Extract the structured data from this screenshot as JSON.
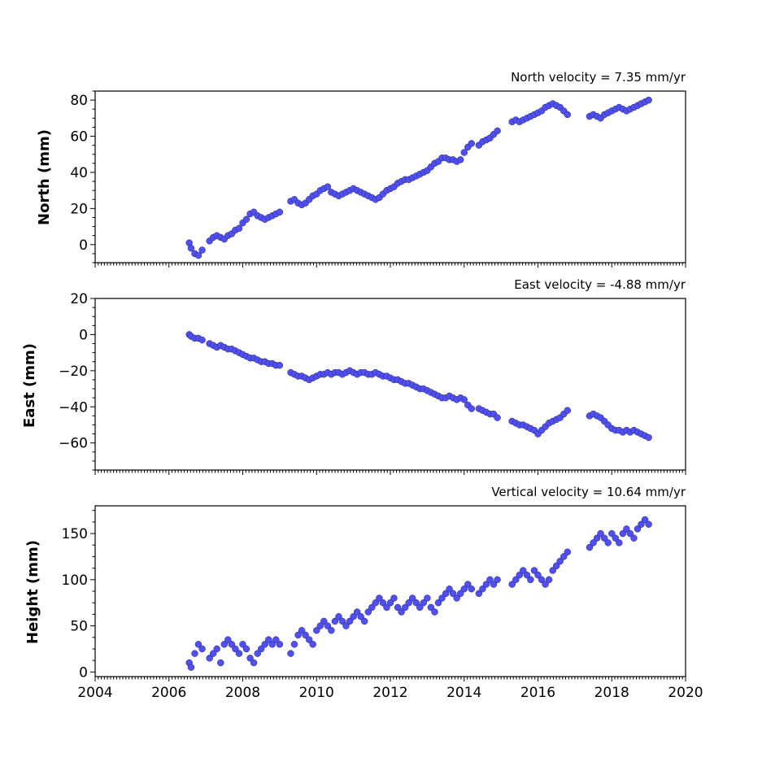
{
  "chart_data": [
    {
      "type": "scatter",
      "title": "North velocity = 7.35 mm/yr",
      "ylabel": "North (mm)",
      "xlim": [
        2004,
        2020
      ],
      "ylim": [
        -10,
        85
      ],
      "yticks": [
        0,
        20,
        40,
        60,
        80
      ],
      "x_tick_labels_shown": false,
      "color": "#4f4ff5",
      "series": [
        {
          "x": [
            2006.55,
            2006.6,
            2006.7,
            2006.8,
            2006.9,
            2007.1,
            2007.2,
            2007.3,
            2007.4,
            2007.5,
            2007.6,
            2007.7,
            2007.8,
            2007.9,
            2008.0,
            2008.1,
            2008.2,
            2008.3,
            2008.4,
            2008.5,
            2008.6,
            2008.7,
            2008.8,
            2008.9,
            2009.0,
            2009.3,
            2009.4,
            2009.5,
            2009.6,
            2009.7,
            2009.8,
            2009.9,
            2010.0,
            2010.1,
            2010.2,
            2010.3,
            2010.4,
            2010.5,
            2010.6,
            2010.7,
            2010.8,
            2010.9,
            2011.0,
            2011.1,
            2011.2,
            2011.3,
            2011.4,
            2011.5,
            2011.6,
            2011.7,
            2011.8,
            2011.9,
            2012.0,
            2012.1,
            2012.2,
            2012.3,
            2012.4,
            2012.5,
            2012.6,
            2012.7,
            2012.8,
            2012.9,
            2013.0,
            2013.1,
            2013.2,
            2013.3,
            2013.4,
            2013.5,
            2013.6,
            2013.7,
            2013.8,
            2013.9,
            2014.0,
            2014.1,
            2014.2,
            2014.4,
            2014.5,
            2014.6,
            2014.7,
            2014.8,
            2014.9,
            2015.3,
            2015.4,
            2015.5,
            2015.6,
            2015.7,
            2015.8,
            2015.9,
            2016.0,
            2016.1,
            2016.2,
            2016.3,
            2016.4,
            2016.5,
            2016.6,
            2016.7,
            2016.8,
            2017.4,
            2017.5,
            2017.6,
            2017.7,
            2017.8,
            2017.9,
            2018.0,
            2018.1,
            2018.2,
            2018.3,
            2018.4,
            2018.5,
            2018.6,
            2018.7,
            2018.8,
            2018.9,
            2019.0
          ],
          "y": [
            1,
            -2,
            -5,
            -6,
            -3,
            2,
            4,
            5,
            4,
            3,
            5,
            6,
            8,
            9,
            12,
            14,
            17,
            18,
            16,
            15,
            14,
            15,
            16,
            17,
            18,
            24,
            25,
            23,
            22,
            23,
            25,
            27,
            28,
            30,
            31,
            32,
            29,
            28,
            27,
            28,
            29,
            30,
            31,
            30,
            29,
            28,
            27,
            26,
            25,
            26,
            28,
            30,
            31,
            32,
            34,
            35,
            36,
            36,
            37,
            38,
            39,
            40,
            41,
            43,
            45,
            46,
            48,
            48,
            47,
            47,
            46,
            47,
            51,
            54,
            56,
            55,
            57,
            58,
            59,
            61,
            63,
            68,
            69,
            68,
            69,
            70,
            71,
            72,
            73,
            74,
            76,
            77,
            78,
            77,
            76,
            74,
            72,
            71,
            72,
            71,
            70,
            72,
            73,
            74,
            75,
            76,
            75,
            74,
            75,
            76,
            77,
            78,
            79,
            80
          ]
        }
      ]
    },
    {
      "type": "scatter",
      "title": "East velocity = -4.88 mm/yr",
      "ylabel": "East (mm)",
      "xlim": [
        2004,
        2020
      ],
      "ylim": [
        -75,
        20
      ],
      "yticks": [
        -60,
        -40,
        -20,
        0,
        20
      ],
      "x_tick_labels_shown": false,
      "color": "#4f4ff5",
      "series": [
        {
          "x": [
            2006.55,
            2006.6,
            2006.7,
            2006.8,
            2006.9,
            2007.1,
            2007.2,
            2007.3,
            2007.4,
            2007.5,
            2007.6,
            2007.7,
            2007.8,
            2007.9,
            2008.0,
            2008.1,
            2008.2,
            2008.3,
            2008.4,
            2008.5,
            2008.6,
            2008.7,
            2008.8,
            2008.9,
            2009.0,
            2009.3,
            2009.4,
            2009.5,
            2009.6,
            2009.7,
            2009.8,
            2009.9,
            2010.0,
            2010.1,
            2010.2,
            2010.3,
            2010.4,
            2010.5,
            2010.6,
            2010.7,
            2010.8,
            2010.9,
            2011.0,
            2011.1,
            2011.2,
            2011.3,
            2011.4,
            2011.5,
            2011.6,
            2011.7,
            2011.8,
            2011.9,
            2012.0,
            2012.1,
            2012.2,
            2012.3,
            2012.4,
            2012.5,
            2012.6,
            2012.7,
            2012.8,
            2012.9,
            2013.0,
            2013.1,
            2013.2,
            2013.3,
            2013.4,
            2013.5,
            2013.6,
            2013.7,
            2013.8,
            2013.9,
            2014.0,
            2014.1,
            2014.2,
            2014.4,
            2014.5,
            2014.6,
            2014.7,
            2014.8,
            2014.9,
            2015.3,
            2015.4,
            2015.5,
            2015.6,
            2015.7,
            2015.8,
            2015.9,
            2016.0,
            2016.1,
            2016.2,
            2016.3,
            2016.4,
            2016.5,
            2016.6,
            2016.7,
            2016.8,
            2017.4,
            2017.5,
            2017.6,
            2017.7,
            2017.8,
            2017.9,
            2018.0,
            2018.1,
            2018.2,
            2018.3,
            2018.4,
            2018.5,
            2018.6,
            2018.7,
            2018.8,
            2018.9,
            2019.0
          ],
          "y": [
            0,
            -1,
            -2,
            -2,
            -3,
            -5,
            -6,
            -7,
            -6,
            -7,
            -8,
            -8,
            -9,
            -10,
            -11,
            -12,
            -13,
            -13,
            -14,
            -15,
            -15,
            -16,
            -16,
            -17,
            -17,
            -21,
            -22,
            -23,
            -23,
            -24,
            -25,
            -24,
            -23,
            -22,
            -22,
            -21,
            -22,
            -21,
            -21,
            -22,
            -21,
            -20,
            -21,
            -22,
            -21,
            -21,
            -22,
            -22,
            -21,
            -22,
            -23,
            -23,
            -24,
            -25,
            -25,
            -26,
            -27,
            -27,
            -28,
            -29,
            -30,
            -30,
            -31,
            -32,
            -33,
            -34,
            -35,
            -35,
            -34,
            -35,
            -36,
            -35,
            -36,
            -39,
            -41,
            -41,
            -42,
            -43,
            -44,
            -44,
            -46,
            -48,
            -49,
            -50,
            -50,
            -51,
            -52,
            -53,
            -55,
            -53,
            -51,
            -49,
            -48,
            -47,
            -46,
            -44,
            -42,
            -45,
            -44,
            -45,
            -46,
            -48,
            -50,
            -52,
            -53,
            -53,
            -54,
            -53,
            -54,
            -53,
            -54,
            -55,
            -56,
            -57
          ]
        }
      ]
    },
    {
      "type": "scatter",
      "title": "Vertical velocity = 10.64 mm/yr",
      "ylabel": "Height (mm)",
      "xlim": [
        2004,
        2020
      ],
      "ylim": [
        -5,
        180
      ],
      "yticks": [
        0,
        50,
        100,
        150
      ],
      "x_tick_labels": [
        "2004",
        "2006",
        "2008",
        "2010",
        "2012",
        "2014",
        "2016",
        "2018",
        "2020"
      ],
      "color": "#4f4ff5",
      "series": [
        {
          "x": [
            2006.55,
            2006.6,
            2006.7,
            2006.8,
            2006.9,
            2007.1,
            2007.2,
            2007.3,
            2007.4,
            2007.5,
            2007.6,
            2007.7,
            2007.8,
            2007.9,
            2008.0,
            2008.1,
            2008.2,
            2008.3,
            2008.4,
            2008.5,
            2008.6,
            2008.7,
            2008.8,
            2008.9,
            2009.0,
            2009.3,
            2009.4,
            2009.5,
            2009.6,
            2009.7,
            2009.8,
            2009.9,
            2010.0,
            2010.1,
            2010.2,
            2010.3,
            2010.4,
            2010.5,
            2010.6,
            2010.7,
            2010.8,
            2010.9,
            2011.0,
            2011.1,
            2011.2,
            2011.3,
            2011.4,
            2011.5,
            2011.6,
            2011.7,
            2011.8,
            2011.9,
            2012.0,
            2012.1,
            2012.2,
            2012.3,
            2012.4,
            2012.5,
            2012.6,
            2012.7,
            2012.8,
            2012.9,
            2013.0,
            2013.1,
            2013.2,
            2013.3,
            2013.4,
            2013.5,
            2013.6,
            2013.7,
            2013.8,
            2013.9,
            2014.0,
            2014.1,
            2014.2,
            2014.4,
            2014.5,
            2014.6,
            2014.7,
            2014.8,
            2014.9,
            2015.3,
            2015.4,
            2015.5,
            2015.6,
            2015.7,
            2015.8,
            2015.9,
            2016.0,
            2016.1,
            2016.2,
            2016.3,
            2016.4,
            2016.5,
            2016.6,
            2016.7,
            2016.8,
            2017.4,
            2017.5,
            2017.6,
            2017.7,
            2017.8,
            2017.9,
            2018.0,
            2018.1,
            2018.2,
            2018.3,
            2018.4,
            2018.5,
            2018.6,
            2018.7,
            2018.8,
            2018.9,
            2019.0
          ],
          "y": [
            10,
            5,
            20,
            30,
            25,
            15,
            20,
            25,
            10,
            30,
            35,
            30,
            25,
            20,
            30,
            25,
            15,
            10,
            20,
            25,
            30,
            35,
            30,
            35,
            30,
            20,
            30,
            40,
            45,
            40,
            35,
            30,
            45,
            50,
            55,
            50,
            45,
            55,
            60,
            55,
            50,
            55,
            60,
            65,
            60,
            55,
            65,
            70,
            75,
            80,
            75,
            70,
            75,
            80,
            70,
            65,
            70,
            75,
            80,
            75,
            70,
            75,
            80,
            70,
            65,
            75,
            80,
            85,
            90,
            85,
            80,
            85,
            90,
            95,
            90,
            85,
            90,
            95,
            100,
            95,
            100,
            95,
            100,
            105,
            110,
            105,
            100,
            110,
            105,
            100,
            95,
            100,
            110,
            115,
            120,
            125,
            130,
            135,
            140,
            145,
            150,
            145,
            140,
            150,
            145,
            140,
            150,
            155,
            150,
            145,
            155,
            160,
            165,
            160
          ]
        }
      ]
    }
  ]
}
